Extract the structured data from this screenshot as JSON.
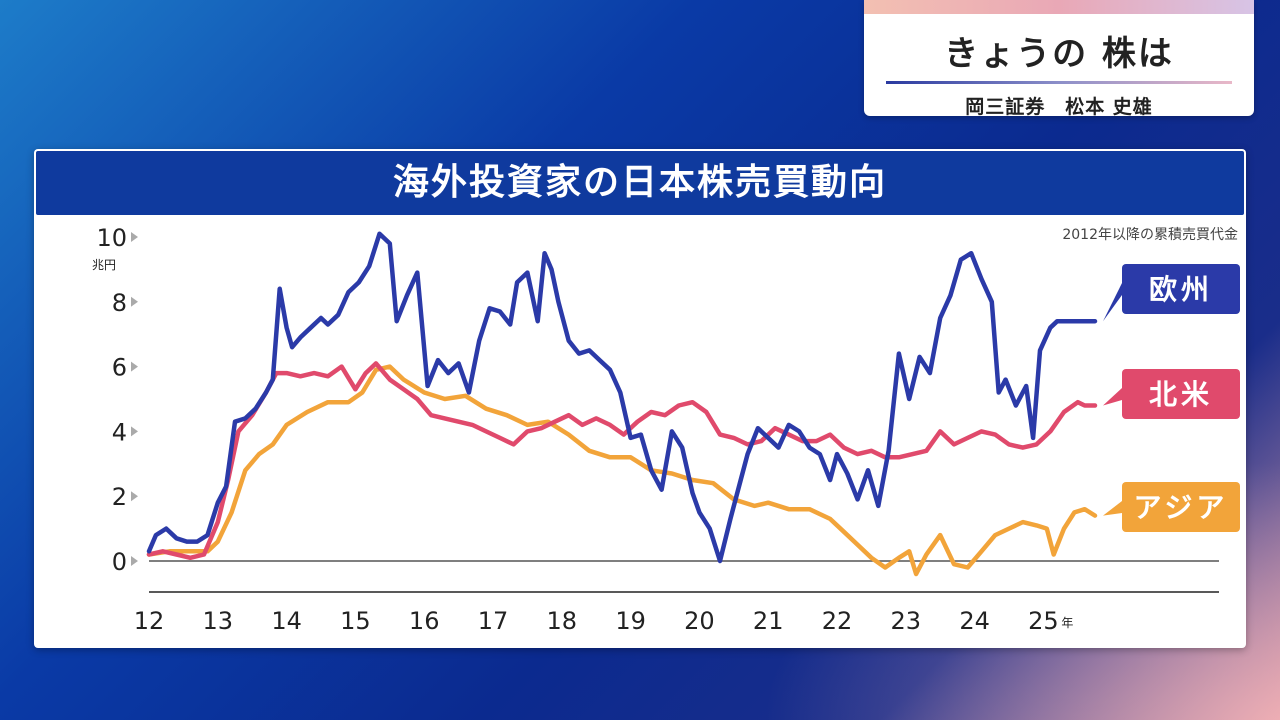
{
  "program": {
    "title": "きょうの 株は",
    "subtitle": "岡三証券　松本 史雄"
  },
  "chart_data": {
    "type": "line",
    "title": "海外投資家の日本株売買動向",
    "subtitle": "2012年以降の累積売買代金",
    "ylabel_unit": "兆円",
    "x_unit_suffix": "年",
    "xlim": [
      2012,
      2027.5
    ],
    "ylim": [
      -1,
      10.5
    ],
    "y_ticks": [
      0,
      2,
      4,
      6,
      8,
      10
    ],
    "x_ticks": [
      2012,
      2013,
      2014,
      2015,
      2016,
      2017,
      2018,
      2019,
      2020,
      2021,
      2022,
      2023,
      2024,
      2025
    ],
    "x_tick_labels": [
      "12",
      "13",
      "14",
      "15",
      "16",
      "17",
      "18",
      "19",
      "20",
      "21",
      "22",
      "23",
      "24",
      "25"
    ],
    "colors": {
      "europe": "#2b3aa8",
      "na": "#e04a6c",
      "asia": "#f2a43a"
    },
    "series": [
      {
        "name": "欧州",
        "key": "europe",
        "x": [
          2012.0,
          2012.1,
          2012.25,
          2012.4,
          2012.55,
          2012.7,
          2012.85,
          2013.0,
          2013.12,
          2013.25,
          2013.4,
          2013.55,
          2013.7,
          2013.8,
          2013.9,
          2014.0,
          2014.08,
          2014.2,
          2014.35,
          2014.5,
          2014.6,
          2014.75,
          2014.9,
          2015.05,
          2015.2,
          2015.35,
          2015.5,
          2015.6,
          2015.75,
          2015.9,
          2016.05,
          2016.2,
          2016.35,
          2016.5,
          2016.65,
          2016.8,
          2016.95,
          2017.1,
          2017.25,
          2017.35,
          2017.5,
          2017.65,
          2017.75,
          2017.85,
          2017.95,
          2018.1,
          2018.25,
          2018.4,
          2018.55,
          2018.7,
          2018.85,
          2019.0,
          2019.15,
          2019.3,
          2019.45,
          2019.6,
          2019.75,
          2019.9,
          2020.0,
          2020.15,
          2020.3,
          2020.45,
          2020.6,
          2020.7,
          2020.85,
          2021.0,
          2021.15,
          2021.3,
          2021.45,
          2021.6,
          2021.75,
          2021.9,
          2022.0,
          2022.15,
          2022.3,
          2022.45,
          2022.6,
          2022.75,
          2022.9,
          2023.05,
          2023.2,
          2023.35,
          2023.5,
          2023.65,
          2023.8,
          2023.95,
          2024.1,
          2024.25,
          2024.35,
          2024.45,
          2024.6,
          2024.75,
          2024.85,
          2024.95,
          2025.1,
          2025.2,
          2025.35,
          2025.5,
          2025.6,
          2025.75
        ],
        "values": [
          0.3,
          0.8,
          1.0,
          0.7,
          0.6,
          0.6,
          0.8,
          1.8,
          2.3,
          4.3,
          4.4,
          4.7,
          5.2,
          5.6,
          8.4,
          7.2,
          6.6,
          6.9,
          7.2,
          7.5,
          7.3,
          7.6,
          8.3,
          8.6,
          9.1,
          10.1,
          9.8,
          7.4,
          8.2,
          8.9,
          5.4,
          6.2,
          5.8,
          6.1,
          5.2,
          6.8,
          7.8,
          7.7,
          7.3,
          8.6,
          8.9,
          7.4,
          9.5,
          9.0,
          8.0,
          6.8,
          6.4,
          6.5,
          6.2,
          5.9,
          5.2,
          3.8,
          3.9,
          2.8,
          2.2,
          4.0,
          3.5,
          2.1,
          1.5,
          1.0,
          0.0,
          1.3,
          2.5,
          3.3,
          4.1,
          3.8,
          3.5,
          4.2,
          4.0,
          3.5,
          3.3,
          2.5,
          3.3,
          2.7,
          1.9,
          2.8,
          1.7,
          3.4,
          6.4,
          5.0,
          6.3,
          5.8,
          7.5,
          8.2,
          9.3,
          9.5,
          8.7,
          8.0,
          5.2,
          5.6,
          4.8,
          5.4,
          3.8,
          6.5,
          7.2,
          7.4,
          7.4,
          7.4,
          7.4,
          7.4
        ]
      },
      {
        "name": "北米",
        "key": "na",
        "x": [
          2012.0,
          2012.2,
          2012.4,
          2012.6,
          2012.8,
          2013.0,
          2013.15,
          2013.3,
          2013.5,
          2013.7,
          2013.85,
          2014.0,
          2014.2,
          2014.4,
          2014.6,
          2014.8,
          2015.0,
          2015.15,
          2015.3,
          2015.5,
          2015.7,
          2015.9,
          2016.1,
          2016.3,
          2016.5,
          2016.7,
          2016.9,
          2017.1,
          2017.3,
          2017.5,
          2017.7,
          2017.9,
          2018.1,
          2018.3,
          2018.5,
          2018.7,
          2018.9,
          2019.1,
          2019.3,
          2019.5,
          2019.7,
          2019.9,
          2020.1,
          2020.3,
          2020.5,
          2020.7,
          2020.9,
          2021.1,
          2021.3,
          2021.5,
          2021.7,
          2021.9,
          2022.1,
          2022.3,
          2022.5,
          2022.7,
          2022.9,
          2023.1,
          2023.3,
          2023.5,
          2023.7,
          2023.9,
          2024.1,
          2024.3,
          2024.5,
          2024.7,
          2024.9,
          2025.1,
          2025.3,
          2025.5,
          2025.6,
          2025.75
        ],
        "values": [
          0.2,
          0.3,
          0.2,
          0.1,
          0.2,
          1.2,
          2.5,
          4.0,
          4.5,
          5.2,
          5.8,
          5.8,
          5.7,
          5.8,
          5.7,
          6.0,
          5.3,
          5.8,
          6.1,
          5.6,
          5.3,
          5.0,
          4.5,
          4.4,
          4.3,
          4.2,
          4.0,
          3.8,
          3.6,
          4.0,
          4.1,
          4.3,
          4.5,
          4.2,
          4.4,
          4.2,
          3.9,
          4.3,
          4.6,
          4.5,
          4.8,
          4.9,
          4.6,
          3.9,
          3.8,
          3.6,
          3.7,
          4.1,
          3.9,
          3.7,
          3.7,
          3.9,
          3.5,
          3.3,
          3.4,
          3.2,
          3.2,
          3.3,
          3.4,
          4.0,
          3.6,
          3.8,
          4.0,
          3.9,
          3.6,
          3.5,
          3.6,
          4.0,
          4.6,
          4.9,
          4.8,
          4.8
        ]
      },
      {
        "name": "アジア",
        "key": "asia",
        "x": [
          2012.0,
          2012.3,
          2012.6,
          2012.85,
          2013.0,
          2013.2,
          2013.4,
          2013.6,
          2013.8,
          2014.0,
          2014.3,
          2014.6,
          2014.9,
          2015.1,
          2015.3,
          2015.5,
          2015.7,
          2016.0,
          2016.3,
          2016.6,
          2016.9,
          2017.2,
          2017.5,
          2017.8,
          2018.1,
          2018.4,
          2018.7,
          2019.0,
          2019.3,
          2019.6,
          2019.9,
          2020.2,
          2020.5,
          2020.8,
          2021.0,
          2021.3,
          2021.6,
          2021.9,
          2022.1,
          2022.3,
          2022.5,
          2022.7,
          2022.9,
          2023.05,
          2023.15,
          2023.3,
          2023.5,
          2023.7,
          2023.9,
          2024.1,
          2024.3,
          2024.5,
          2024.7,
          2024.9,
          2025.05,
          2025.15,
          2025.3,
          2025.45,
          2025.6,
          2025.75
        ],
        "values": [
          0.2,
          0.3,
          0.3,
          0.3,
          0.6,
          1.5,
          2.8,
          3.3,
          3.6,
          4.2,
          4.6,
          4.9,
          4.9,
          5.2,
          5.9,
          6.0,
          5.6,
          5.2,
          5.0,
          5.1,
          4.7,
          4.5,
          4.2,
          4.3,
          3.9,
          3.4,
          3.2,
          3.2,
          2.8,
          2.7,
          2.5,
          2.4,
          1.9,
          1.7,
          1.8,
          1.6,
          1.6,
          1.3,
          0.9,
          0.5,
          0.1,
          -0.2,
          0.1,
          0.3,
          -0.4,
          0.2,
          0.8,
          -0.1,
          -0.2,
          0.3,
          0.8,
          1.0,
          1.2,
          1.1,
          1.0,
          0.2,
          1.0,
          1.5,
          1.6,
          1.4
        ]
      }
    ]
  }
}
